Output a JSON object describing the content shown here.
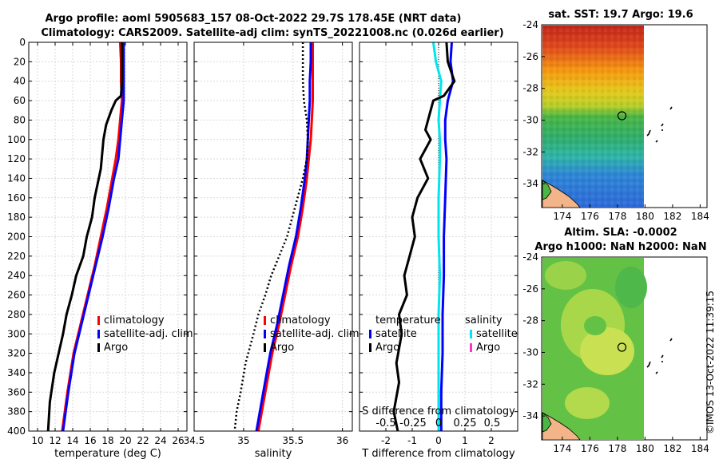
{
  "header": {
    "line1": "Argo profile: aoml 5905683_157 08-Oct-2022 29.7S 178.45E (NRT data)",
    "line2": "Climatology: CARS2009. Satellite-adj clim: synTS_20221008.nc (0.026d earlier)"
  },
  "chart_data": [
    {
      "type": "line",
      "name": "temperature",
      "xlabel": "temperature (deg C)",
      "ylabel": "depth",
      "xlim": [
        9,
        27
      ],
      "ylim": [
        400,
        0
      ],
      "xticks": [
        10,
        12,
        14,
        16,
        18,
        20,
        22,
        24,
        26
      ],
      "yticks": [
        0,
        20,
        40,
        60,
        80,
        100,
        120,
        140,
        160,
        180,
        200,
        220,
        240,
        260,
        280,
        300,
        320,
        340,
        360,
        380,
        400
      ],
      "legend": [
        "climatology",
        "satellite-adj. clim",
        "Argo"
      ],
      "series": [
        {
          "name": "climatology",
          "color": "#ff0000",
          "x": [
            19.4,
            19.5,
            19.5,
            19.6,
            19.4,
            19.2,
            18.9,
            18.5,
            17.9,
            17.2,
            16.5,
            15.7,
            14.9,
            14.1,
            13.4,
            12.8
          ],
          "y": [
            0,
            20,
            40,
            60,
            80,
            100,
            120,
            140,
            170,
            200,
            230,
            260,
            290,
            320,
            360,
            400
          ]
        },
        {
          "name": "satellite-adj. clim",
          "color": "#0000ff",
          "x": [
            19.8,
            19.8,
            19.8,
            19.8,
            19.6,
            19.4,
            19.2,
            18.7,
            18.1,
            17.4,
            16.6,
            15.8,
            15.0,
            14.2,
            13.5,
            12.9
          ],
          "y": [
            0,
            20,
            40,
            60,
            80,
            100,
            120,
            140,
            170,
            200,
            230,
            260,
            290,
            320,
            360,
            400
          ]
        },
        {
          "name": "Argo",
          "color": "#000000",
          "x": [
            19.6,
            19.6,
            19.6,
            19.5,
            18.9,
            18.4,
            17.8,
            17.5,
            17.2,
            16.5,
            16.2,
            15.6,
            15.2,
            14.4,
            13.9,
            13.3,
            12.9,
            12.4,
            11.9,
            11.4,
            11.2
          ],
          "y": [
            0,
            20,
            40,
            55,
            60,
            70,
            85,
            100,
            130,
            160,
            180,
            200,
            220,
            240,
            260,
            280,
            300,
            320,
            340,
            370,
            400
          ]
        }
      ]
    },
    {
      "type": "line",
      "name": "salinity",
      "xlabel": "salinity",
      "xlim": [
        34.5,
        36.1
      ],
      "ylim": [
        400,
        0
      ],
      "xticks": [
        34.5,
        35,
        35.5,
        36
      ],
      "xticklabels": [
        "34.5",
        "35",
        "35.5",
        "36"
      ],
      "legend": [
        "climatology",
        "satellite-adj. clim",
        "Argo"
      ],
      "series": [
        {
          "name": "climatology",
          "color": "#ff0000",
          "x": [
            35.7,
            35.7,
            35.7,
            35.7,
            35.69,
            35.68,
            35.66,
            35.64,
            35.6,
            35.55,
            35.48,
            35.42,
            35.36,
            35.29,
            35.22,
            35.15
          ],
          "y": [
            0,
            20,
            40,
            60,
            80,
            100,
            120,
            140,
            170,
            200,
            230,
            260,
            290,
            320,
            360,
            400
          ]
        },
        {
          "name": "satellite-adj. clim",
          "color": "#0000ff",
          "x": [
            35.68,
            35.68,
            35.67,
            35.67,
            35.66,
            35.65,
            35.64,
            35.62,
            35.58,
            35.53,
            35.46,
            35.4,
            35.34,
            35.27,
            35.2,
            35.13
          ],
          "y": [
            0,
            20,
            40,
            60,
            80,
            100,
            120,
            140,
            170,
            200,
            230,
            260,
            290,
            320,
            360,
            400
          ]
        },
        {
          "name": "Argo",
          "color": "#000000",
          "dashed": true,
          "x": [
            35.6,
            35.6,
            35.6,
            35.61,
            35.64,
            35.65,
            35.64,
            35.6,
            35.52,
            35.44,
            35.36,
            35.28,
            35.22,
            35.15,
            35.1,
            35.02,
            34.97,
            34.93,
            34.91
          ],
          "y": [
            0,
            20,
            40,
            60,
            80,
            100,
            120,
            140,
            170,
            200,
            220,
            240,
            260,
            280,
            300,
            330,
            360,
            380,
            400
          ]
        }
      ]
    },
    {
      "type": "line",
      "name": "difference",
      "xlabel": "T difference from climatology",
      "xlabel2": "S difference from climatology",
      "xlim": [
        -3,
        3
      ],
      "ylim": [
        400,
        0
      ],
      "xticks": [
        -2,
        -1,
        0,
        1,
        2
      ],
      "sticks": [
        "-0.5",
        "-0.25",
        "0",
        "0.25",
        "0.5"
      ],
      "legend_titles": [
        "temperature",
        "salinity"
      ],
      "legend_left": [
        "satellite",
        "Argo"
      ],
      "legend_right": [
        "satellite",
        "Argo"
      ],
      "series": [
        {
          "name": "T satellite",
          "color": "#0000ff",
          "x": [
            0.5,
            0.45,
            0.55,
            0.35,
            0.25,
            0.25,
            0.3,
            0.25,
            0.2,
            0.2,
            0.15,
            0.15,
            0.1,
            0.1
          ],
          "y": [
            0,
            20,
            40,
            60,
            80,
            100,
            120,
            160,
            200,
            240,
            280,
            320,
            360,
            400
          ]
        },
        {
          "name": "S satellite",
          "color": "#00e5ee",
          "x": [
            -0.2,
            -0.1,
            0.1,
            0.05,
            0.0,
            0.05,
            0.05,
            0.0,
            0.0,
            0.05,
            0.0,
            0.0,
            0.0,
            0.0
          ],
          "y": [
            0,
            20,
            40,
            60,
            80,
            100,
            120,
            160,
            200,
            240,
            280,
            320,
            360,
            400
          ]
        },
        {
          "name": "T Argo",
          "color": "#000000",
          "x": [
            0.3,
            0.35,
            0.6,
            0.2,
            -0.2,
            -0.3,
            -0.5,
            -0.3,
            -0.7,
            -0.4,
            -0.8,
            -1.0,
            -0.9,
            -1.1,
            -1.3,
            -1.2,
            -1.5,
            -1.4,
            -1.6,
            -1.5,
            -1.7,
            -1.55
          ],
          "y": [
            0,
            20,
            40,
            55,
            60,
            70,
            90,
            100,
            120,
            140,
            160,
            180,
            200,
            220,
            240,
            260,
            280,
            300,
            330,
            350,
            380,
            400
          ]
        }
      ]
    },
    {
      "type": "heatmap",
      "name": "sst-map",
      "title": "sat. SST: 19.7 Argo: 19.6",
      "xlim": [
        172.5,
        184.5
      ],
      "ylim": [
        -35.5,
        -24
      ],
      "xticks": [
        "174",
        "176",
        "178",
        "180",
        "182",
        "184"
      ],
      "yticks": [
        "-24",
        "-26",
        "-28",
        "-30",
        "-32",
        "-34"
      ],
      "argo_position": {
        "lon": 178.45,
        "lat": -29.7
      }
    },
    {
      "type": "heatmap",
      "name": "sla-map",
      "title": "Altim. SLA: -0.0002",
      "title2": "Argo h1000: NaN h2000: NaN",
      "xlim": [
        172.5,
        184.5
      ],
      "ylim": [
        -35.5,
        -24
      ],
      "xticks": [
        "174",
        "176",
        "178",
        "180",
        "182",
        "184"
      ],
      "yticks": [
        "-24",
        "-26",
        "-28",
        "-30",
        "-32",
        "-34"
      ],
      "argo_position": {
        "lon": 178.45,
        "lat": -29.7
      }
    }
  ],
  "footer": {
    "stamp": "©IMOS 13-Oct-2022 11:39:15"
  }
}
